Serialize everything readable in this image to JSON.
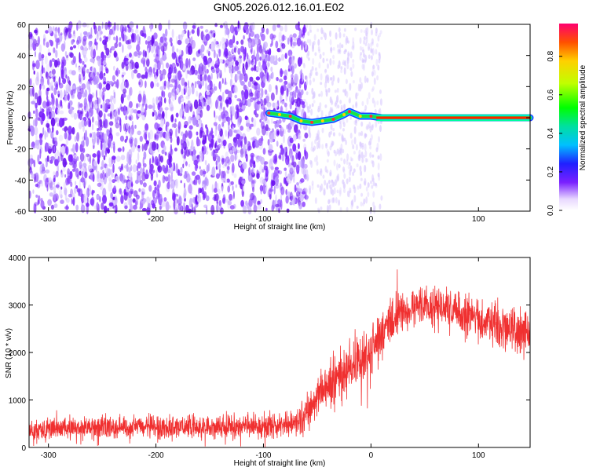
{
  "title": "GN05.2026.012.16.01.E02",
  "chart_data": [
    {
      "type": "heatmap",
      "xlabel": "Height of straight line (km)",
      "ylabel": "Frequency (Hz)",
      "xlim": [
        -318,
        148
      ],
      "ylim": [
        -60,
        60
      ],
      "xticks": [
        -300,
        -200,
        -100,
        0,
        100
      ],
      "yticks": [
        -60,
        -40,
        -20,
        0,
        20,
        40,
        60
      ],
      "colorbar": {
        "label": "Normalized spectral amplitude",
        "range": [
          0.0,
          0.97
        ],
        "ticks": [
          0.0,
          0.2,
          0.4,
          0.6,
          0.8
        ]
      },
      "signal_trace": [
        {
          "x": -95,
          "y": 3
        },
        {
          "x": -85,
          "y": 2
        },
        {
          "x": -75,
          "y": 1
        },
        {
          "x": -65,
          "y": -2
        },
        {
          "x": -55,
          "y": -3
        },
        {
          "x": -45,
          "y": -2
        },
        {
          "x": -35,
          "y": -1
        },
        {
          "x": -25,
          "y": 2
        },
        {
          "x": -20,
          "y": 4
        },
        {
          "x": -10,
          "y": 1
        },
        {
          "x": 0,
          "y": 1
        },
        {
          "x": 10,
          "y": 0
        },
        {
          "x": 60,
          "y": 0
        },
        {
          "x": 148,
          "y": 0
        }
      ],
      "noise_region_x": [
        -318,
        -60
      ]
    },
    {
      "type": "line",
      "xlabel": "Height of straight line (km)",
      "ylabel": "SNR (10 * v/v)",
      "xlim": [
        -318,
        148
      ],
      "ylim": [
        0,
        4000
      ],
      "xticks": [
        -300,
        -200,
        -100,
        0,
        100
      ],
      "yticks": [
        0,
        1000,
        2000,
        3000,
        4000
      ],
      "series": [
        {
          "color": "#f03030",
          "envelope": [
            {
              "x": -318,
              "mean": 380,
              "spread": 320
            },
            {
              "x": -250,
              "mean": 420,
              "spread": 340
            },
            {
              "x": -150,
              "mean": 430,
              "spread": 360
            },
            {
              "x": -80,
              "mean": 460,
              "spread": 380
            },
            {
              "x": -65,
              "mean": 550,
              "spread": 450
            },
            {
              "x": -55,
              "mean": 900,
              "spread": 700
            },
            {
              "x": -40,
              "mean": 1300,
              "spread": 700
            },
            {
              "x": -20,
              "mean": 1700,
              "spread": 800
            },
            {
              "x": 0,
              "mean": 2000,
              "spread": 900
            },
            {
              "x": 15,
              "mean": 2600,
              "spread": 700
            },
            {
              "x": 40,
              "mean": 3000,
              "spread": 600
            },
            {
              "x": 70,
              "mean": 2950,
              "spread": 650
            },
            {
              "x": 100,
              "mean": 2700,
              "spread": 650
            },
            {
              "x": 130,
              "mean": 2500,
              "spread": 700
            },
            {
              "x": 148,
              "mean": 2400,
              "spread": 700
            }
          ]
        }
      ]
    }
  ]
}
